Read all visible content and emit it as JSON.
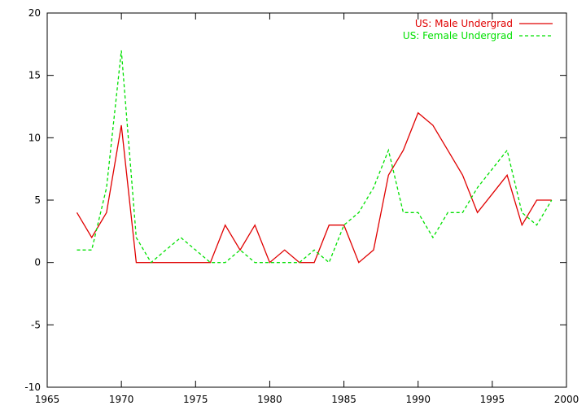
{
  "chart_data": {
    "type": "line",
    "title": "",
    "xlabel": "",
    "ylabel": "",
    "xlim": [
      1965,
      2000
    ],
    "ylim": [
      -10,
      20
    ],
    "x_ticks": [
      1965,
      1970,
      1975,
      1980,
      1985,
      1990,
      1995,
      2000
    ],
    "y_ticks": [
      -10,
      -5,
      0,
      5,
      10,
      15,
      20
    ],
    "grid": false,
    "legend_position": "top-right",
    "x": [
      1967,
      1968,
      1969,
      1970,
      1971,
      1972,
      1973,
      1974,
      1975,
      1976,
      1977,
      1978,
      1979,
      1980,
      1981,
      1982,
      1983,
      1984,
      1985,
      1986,
      1987,
      1988,
      1989,
      1990,
      1991,
      1992,
      1993,
      1994,
      1995,
      1996,
      1997,
      1998,
      1999
    ],
    "series": [
      {
        "name": "US: Male Undergrad",
        "color": "#e00000",
        "dash": "solid",
        "values": [
          4,
          2,
          4,
          11,
          0,
          0,
          0,
          0,
          0,
          0,
          3,
          1,
          3,
          0,
          1,
          0,
          0,
          3,
          3,
          0,
          1,
          7,
          9,
          12,
          11,
          9,
          7,
          4,
          5.5,
          7,
          3,
          5,
          5
        ]
      },
      {
        "name": "US: Female Undergrad",
        "color": "#00e000",
        "dash": "dashed",
        "values": [
          1,
          1,
          6,
          17,
          2,
          0,
          1,
          2,
          1,
          0,
          0,
          1,
          0,
          0,
          0,
          0,
          1,
          0,
          3,
          4,
          6,
          9,
          4,
          4,
          2,
          4,
          4,
          6,
          7.5,
          9,
          4,
          3,
          5
        ]
      }
    ]
  }
}
